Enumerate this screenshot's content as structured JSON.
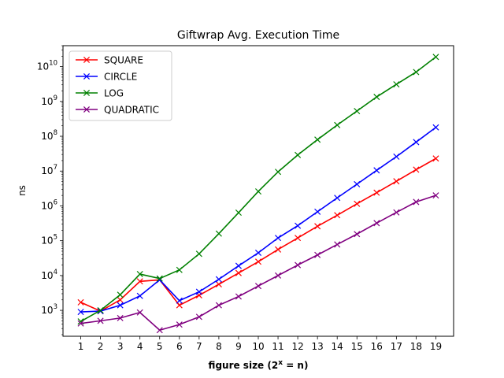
{
  "chart_data": {
    "type": "line",
    "title": "Giftwrap Avg. Execution Time",
    "xlabel": "figure size (2",
    "xlabel_sup": "x",
    "xlabel_tail": " = n)",
    "ylabel": "ns",
    "y_scale": "log",
    "ylim": [
      180,
      40000000000
    ],
    "xlim": [
      0.1,
      19.9
    ],
    "x": [
      1,
      2,
      3,
      4,
      5,
      6,
      7,
      8,
      9,
      10,
      11,
      12,
      13,
      14,
      15,
      16,
      17,
      18,
      19
    ],
    "x_tick_labels": [
      "1",
      "2",
      "3",
      "4",
      "5",
      "6",
      "7",
      "8",
      "9",
      "10",
      "11",
      "12",
      "13",
      "14",
      "15",
      "16",
      "17",
      "18",
      "19"
    ],
    "y_tick_labels": [
      {
        "base": "10",
        "exp": "3",
        "value": 1000
      },
      {
        "base": "10",
        "exp": "4",
        "value": 10000
      },
      {
        "base": "10",
        "exp": "5",
        "value": 100000
      },
      {
        "base": "10",
        "exp": "6",
        "value": 1000000
      },
      {
        "base": "10",
        "exp": "7",
        "value": 10000000
      },
      {
        "base": "10",
        "exp": "8",
        "value": 100000000
      },
      {
        "base": "10",
        "exp": "9",
        "value": 1000000000
      },
      {
        "base": "10",
        "exp": "10",
        "value": 10000000000
      }
    ],
    "grid": false,
    "legend_position": "top-left",
    "series": [
      {
        "name": "SQUARE",
        "color": "#ff0000",
        "values": [
          1700,
          950,
          2000,
          6800,
          7500,
          1400,
          2700,
          5600,
          11800,
          25000,
          56000,
          120000,
          260000,
          540000,
          1150000,
          2400000,
          5100000,
          11000000,
          23000000
        ]
      },
      {
        "name": "CIRCLE",
        "color": "#0000ff",
        "values": [
          900,
          950,
          1400,
          2600,
          7500,
          1900,
          3400,
          7800,
          19000,
          45000,
          120000,
          270000,
          680000,
          1700000,
          4200000,
          10500000,
          26000000,
          68000000,
          180000000
        ]
      },
      {
        "name": "LOG",
        "color": "#008000",
        "values": [
          480,
          1000,
          2800,
          11000,
          8200,
          14500,
          42000,
          160000,
          640000,
          2600000,
          9500000,
          29000000,
          80000000,
          210000000,
          530000000,
          1350000000,
          3100000000,
          7000000000,
          19000000000
        ]
      },
      {
        "name": "QUADRATIC",
        "color": "#800080",
        "values": [
          420,
          500,
          600,
          870,
          270,
          390,
          650,
          1400,
          2500,
          5000,
          10000,
          20000,
          39000,
          78000,
          155000,
          320000,
          650000,
          1300000,
          2000000
        ]
      }
    ]
  }
}
